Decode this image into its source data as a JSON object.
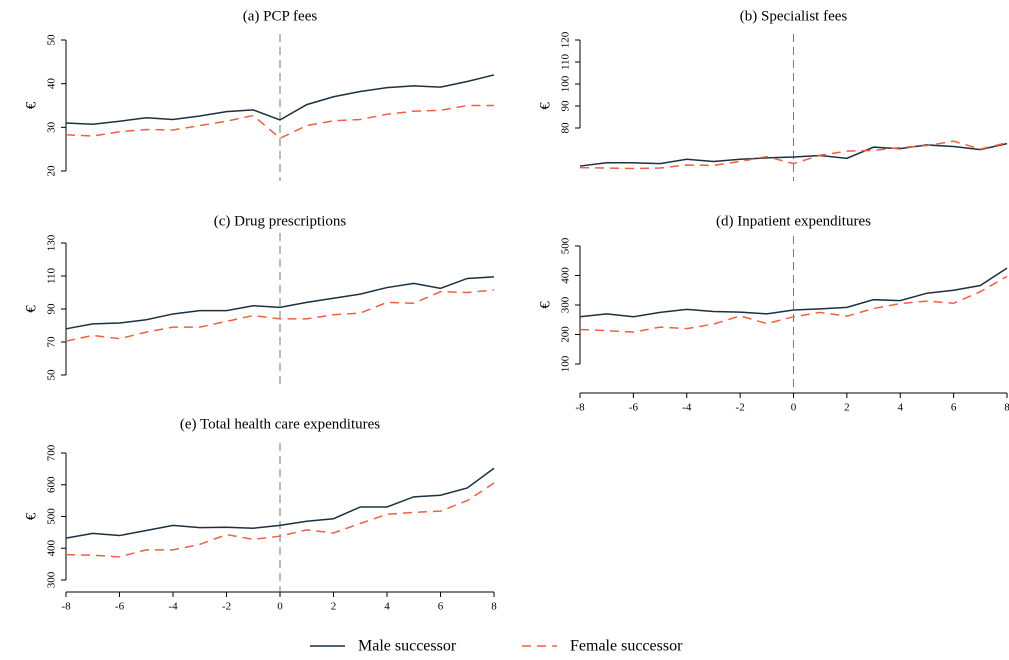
{
  "chart_data": [
    {
      "type": "line",
      "title": "(a) PCP fees",
      "y_label": "€",
      "x": [
        -8,
        -7,
        -6,
        -5,
        -4,
        -3,
        -2,
        -1,
        0,
        1,
        2,
        3,
        4,
        5,
        6,
        7,
        8
      ],
      "xlim": [
        -8,
        8
      ],
      "ylim": [
        20,
        50
      ],
      "yticks": [
        20,
        30,
        40,
        50
      ],
      "vline": 0,
      "series": [
        {
          "name": "Male successor",
          "color": "#1c3140",
          "dash": false,
          "values": [
            31,
            30.7,
            31.4,
            32.2,
            31.8,
            32.6,
            33.6,
            34,
            31.7,
            35.2,
            37,
            38.2,
            39.1,
            39.5,
            39.2,
            40.5,
            42
          ]
        },
        {
          "name": "Female successor",
          "color": "#f0603f",
          "dash": true,
          "values": [
            28.3,
            28,
            29,
            29.5,
            29.4,
            30.4,
            31.4,
            32.7,
            27.5,
            30.4,
            31.5,
            31.8,
            33,
            33.7,
            33.9,
            35,
            35
          ]
        }
      ]
    },
    {
      "type": "line",
      "title": "(b) Specialist fees",
      "y_label": "€",
      "x": [
        -8,
        -7,
        -6,
        -5,
        -4,
        -3,
        -2,
        -1,
        0,
        1,
        2,
        3,
        4,
        5,
        6,
        7,
        8
      ],
      "xlim": [
        -8,
        8
      ],
      "ylim": [
        60,
        120
      ],
      "yticks": [
        80,
        90,
        100,
        110,
        120
      ],
      "vline": 0,
      "series": [
        {
          "color": "#1c3140",
          "dash": false,
          "values": [
            62.7,
            64.2,
            64.2,
            63.8,
            65.8,
            64.8,
            65.8,
            66.4,
            66.8,
            67.5,
            66.2,
            71.3,
            70.6,
            72.3,
            71.6,
            70.2,
            72.9
          ]
        },
        {
          "color": "#f0603f",
          "dash": true,
          "values": [
            62,
            61.8,
            61.6,
            61.8,
            63.2,
            63,
            64.8,
            67,
            63.8,
            67.6,
            69.5,
            69.8,
            71.1,
            72,
            74,
            70.4,
            73.3
          ]
        }
      ]
    },
    {
      "type": "line",
      "title": "(c) Drug prescriptions",
      "y_label": "€",
      "x": [
        -8,
        -7,
        -6,
        -5,
        -4,
        -3,
        -2,
        -1,
        0,
        1,
        2,
        3,
        4,
        5,
        6,
        7,
        8
      ],
      "xlim": [
        -8,
        8
      ],
      "ylim": [
        50,
        130
      ],
      "yticks": [
        50,
        70,
        90,
        110,
        130
      ],
      "vline": 0,
      "series": [
        {
          "color": "#1c3140",
          "dash": false,
          "values": [
            78,
            81,
            81.5,
            83.5,
            87,
            89,
            89,
            92,
            91,
            94,
            96.5,
            99,
            103,
            105.5,
            102.5,
            108.5,
            109.5
          ]
        },
        {
          "color": "#f0603f",
          "dash": true,
          "values": [
            70.5,
            74,
            72,
            76,
            79,
            79,
            82.5,
            86,
            84,
            84,
            86.5,
            87.5,
            94,
            93.5,
            100.5,
            100,
            101.5
          ]
        }
      ]
    },
    {
      "type": "line",
      "title": "(d) Inpatient expenditures",
      "y_label": "€",
      "x": [
        -8,
        -7,
        -6,
        -5,
        -4,
        -3,
        -2,
        -1,
        0,
        1,
        2,
        3,
        4,
        5,
        6,
        7,
        8
      ],
      "xlim": [
        -8,
        8
      ],
      "xticks": [
        -8,
        -6,
        -4,
        -2,
        0,
        2,
        4,
        6,
        8
      ],
      "ylim": [
        100,
        500
      ],
      "yticks": [
        100,
        200,
        300,
        400,
        500
      ],
      "vline": 0,
      "series": [
        {
          "color": "#1c3140",
          "dash": false,
          "values": [
            260,
            270,
            260,
            275,
            285,
            278,
            276,
            270,
            283,
            287,
            292,
            318,
            315,
            340,
            350,
            366,
            425
          ]
        },
        {
          "color": "#f0603f",
          "dash": true,
          "values": [
            217,
            213,
            208,
            225,
            220,
            235,
            263,
            237,
            260,
            275,
            262,
            288,
            305,
            313,
            306,
            345,
            397
          ]
        }
      ]
    },
    {
      "type": "line",
      "title": "(e) Total health care expenditures",
      "y_label": "€",
      "x": [
        -8,
        -7,
        -6,
        -5,
        -4,
        -3,
        -2,
        -1,
        0,
        1,
        2,
        3,
        4,
        5,
        6,
        7,
        8
      ],
      "xlim": [
        -8,
        8
      ],
      "xticks": [
        -8,
        -6,
        -4,
        -2,
        0,
        2,
        4,
        6,
        8
      ],
      "ylim": [
        300,
        700
      ],
      "yticks": [
        300,
        400,
        500,
        600,
        700
      ],
      "vline": 0,
      "series": [
        {
          "color": "#1c3140",
          "dash": false,
          "values": [
            432,
            447,
            440,
            456,
            472,
            465,
            466,
            463,
            472,
            485,
            493,
            530,
            530,
            562,
            567,
            590,
            652
          ]
        },
        {
          "color": "#f0603f",
          "dash": true,
          "values": [
            380,
            378,
            373,
            395,
            395,
            412,
            443,
            428,
            438,
            458,
            448,
            478,
            507,
            513,
            517,
            550,
            605
          ]
        }
      ]
    }
  ]
}
